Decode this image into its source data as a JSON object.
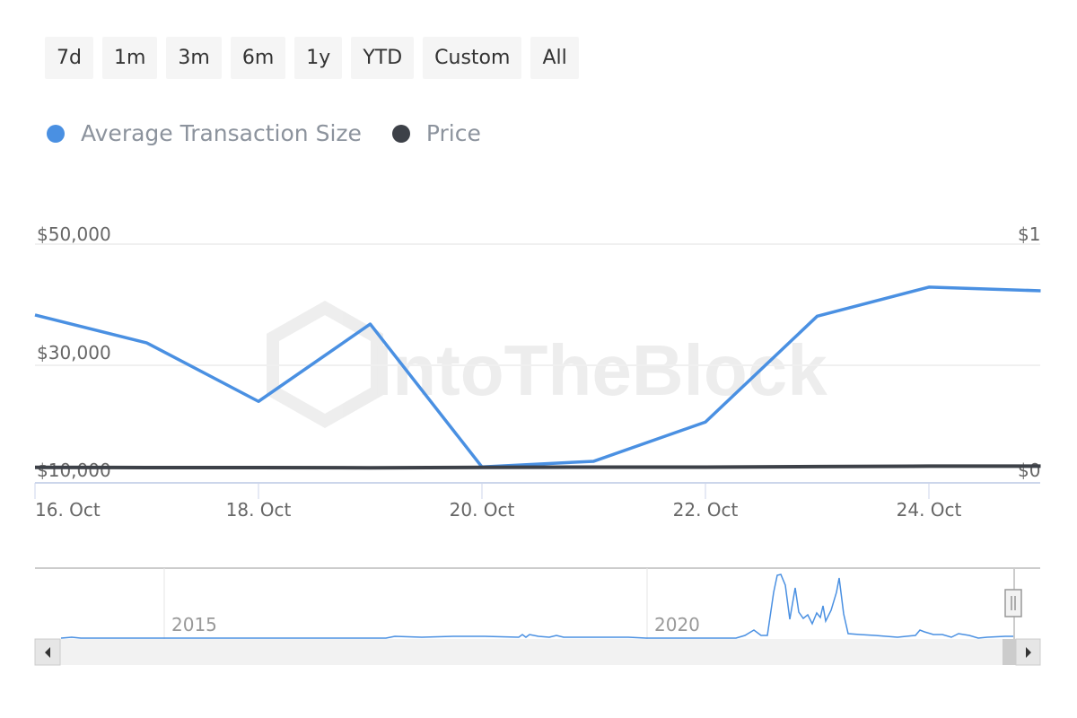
{
  "range_buttons": [
    "7d",
    "1m",
    "3m",
    "6m",
    "1y",
    "YTD",
    "Custom",
    "All"
  ],
  "chart_data": {
    "type": "line",
    "x": [
      "16 Oct",
      "17 Oct",
      "18 Oct",
      "19 Oct",
      "20 Oct",
      "21 Oct",
      "22 Oct",
      "23 Oct",
      "24 Oct",
      "25 Oct"
    ],
    "series": [
      {
        "name": "Average Transaction Size",
        "color": "#4a90e2",
        "axis": "left",
        "values": [
          38300,
          33700,
          23000,
          36800,
          10300,
          11400,
          19000,
          38100,
          42900,
          42300
        ]
      },
      {
        "name": "Price",
        "color": "#3d4148",
        "axis": "right",
        "values": [
          0.005,
          0.004,
          0.004,
          0.003,
          0.005,
          0.006,
          0.006,
          0.008,
          0.01,
          0.01
        ]
      }
    ],
    "x_tick_labels": [
      "16. Oct",
      "18. Oct",
      "20. Oct",
      "22. Oct",
      "24. Oct"
    ],
    "y_left_tick_labels": [
      "$10,000",
      "$30,000",
      "$50,000"
    ],
    "y_right_tick_labels": [
      "$0",
      "$1"
    ],
    "watermark": "IntoTheBlock",
    "navigator": {
      "labels": [
        "2015",
        "2020"
      ]
    },
    "grid": true,
    "legend": "top-left"
  }
}
